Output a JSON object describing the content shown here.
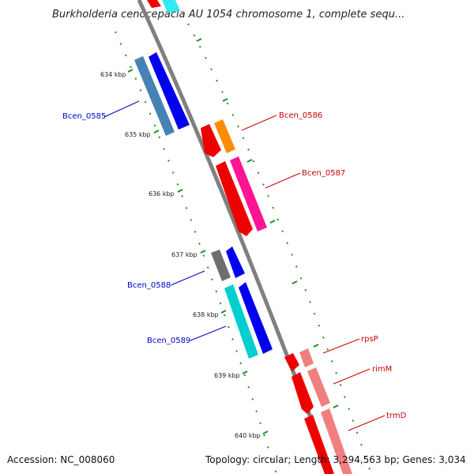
{
  "title": "Burkholderia cenocepacia AU 1054 chromosome 1, complete sequ...",
  "accession_text": "Accession: NC_008060",
  "topology_text": "Topology: circular; Length: 3,294,563 bp; Genes: 3,034",
  "ticks": [
    "634 kbp",
    "635 kbp",
    "636 kbp",
    "637 kbp",
    "638 kbp",
    "639 kbp",
    "640 kbp"
  ],
  "genes": [
    {
      "name": "Bcen_0585",
      "strand": "+",
      "color": "#0000ee",
      "track_color": "#4a7fb0"
    },
    {
      "name": "Bcen_0586",
      "strand": "-",
      "color": "#ee0000",
      "track_color": "#ff8c00"
    },
    {
      "name": "Bcen_0587",
      "strand": "-",
      "color": "#ee0000",
      "track_color": "#ff1493"
    },
    {
      "name": "Bcen_0588",
      "strand": "+",
      "color": "#0000ee",
      "track_color": "#6e6e6e"
    },
    {
      "name": "Bcen_0589",
      "strand": "+",
      "color": "#0000ee",
      "track_color": "#00ced1"
    },
    {
      "name": "rpsP",
      "strand": "-",
      "color": "#ee0000",
      "track_color": "#f08080"
    },
    {
      "name": "rimM",
      "strand": "-",
      "color": "#ee0000",
      "track_color": "#f08080"
    },
    {
      "name": "trmD",
      "strand": "-",
      "color": "#ee0000",
      "track_color": "#f08080"
    }
  ],
  "colors": {
    "backbone": "#808080",
    "tick": "#228b22",
    "forward_label": "#0000cc",
    "reverse_label": "#cc0000"
  }
}
